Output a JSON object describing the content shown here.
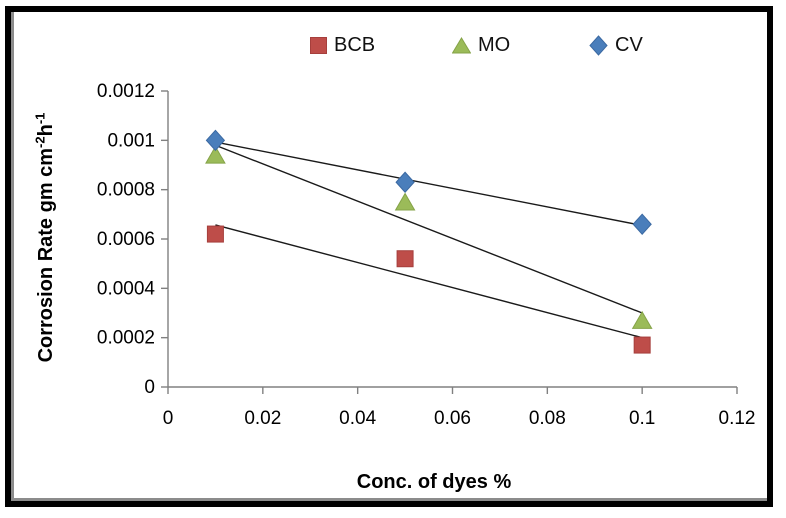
{
  "window": {
    "background": "#ffffff",
    "frame_border_color": "#000000",
    "frame_shadow_color": "#8c8c8c"
  },
  "chart_data": {
    "type": "scatter",
    "title": "",
    "xlabel": "Conc. of dyes %",
    "ylabel": "Corrosion Rate gm cm-2h-1",
    "ylabel_rich": [
      {
        "text": "Corrosion Rate gm cm"
      },
      {
        "text": "-2",
        "sup": true
      },
      {
        "text": "h"
      },
      {
        "text": "-1",
        "sup": true
      }
    ],
    "x": [
      0.01,
      0.05,
      0.1
    ],
    "series": [
      {
        "name": "BCB",
        "marker": "square",
        "color": "#be4d49",
        "edge": "#a63f3c",
        "values": [
          0.00062,
          0.00052,
          0.00017
        ],
        "trend_y": [
          0.000657,
          0.0002
        ]
      },
      {
        "name": "MO",
        "marker": "triangle",
        "color": "#9bbb59",
        "edge": "#85a348",
        "values": [
          0.00094,
          0.00075,
          0.00027
        ],
        "trend_y": [
          0.00098,
          0.0003
        ]
      },
      {
        "name": "CV",
        "marker": "diamond",
        "color": "#4a7ebb",
        "edge": "#3b69a2",
        "values": [
          0.001,
          0.00083,
          0.00066
        ],
        "trend_y": [
          0.000993,
          0.000655
        ]
      }
    ],
    "trend_x": [
      0.01,
      0.1
    ],
    "trendline_color": "#1a1a1a",
    "axis_color": "#808080",
    "tick_label_color": "#000000",
    "xlim": [
      0,
      0.12
    ],
    "ylim": [
      0,
      0.0012
    ],
    "x_ticks": [
      0,
      0.02,
      0.04,
      0.06,
      0.08,
      0.1,
      0.12
    ],
    "y_ticks": [
      0,
      0.0002,
      0.0004,
      0.0006,
      0.0008,
      0.001,
      0.0012
    ],
    "x_tick_labels": [
      "0",
      "0.02",
      "0.04",
      "0.06",
      "0.08",
      "0.1",
      "0.12"
    ],
    "y_tick_labels": [
      "0",
      "0.0002",
      "0.0004",
      "0.0006",
      "0.0008",
      "0.001",
      "0.0012"
    ],
    "grid": false,
    "legend_position": "top"
  }
}
